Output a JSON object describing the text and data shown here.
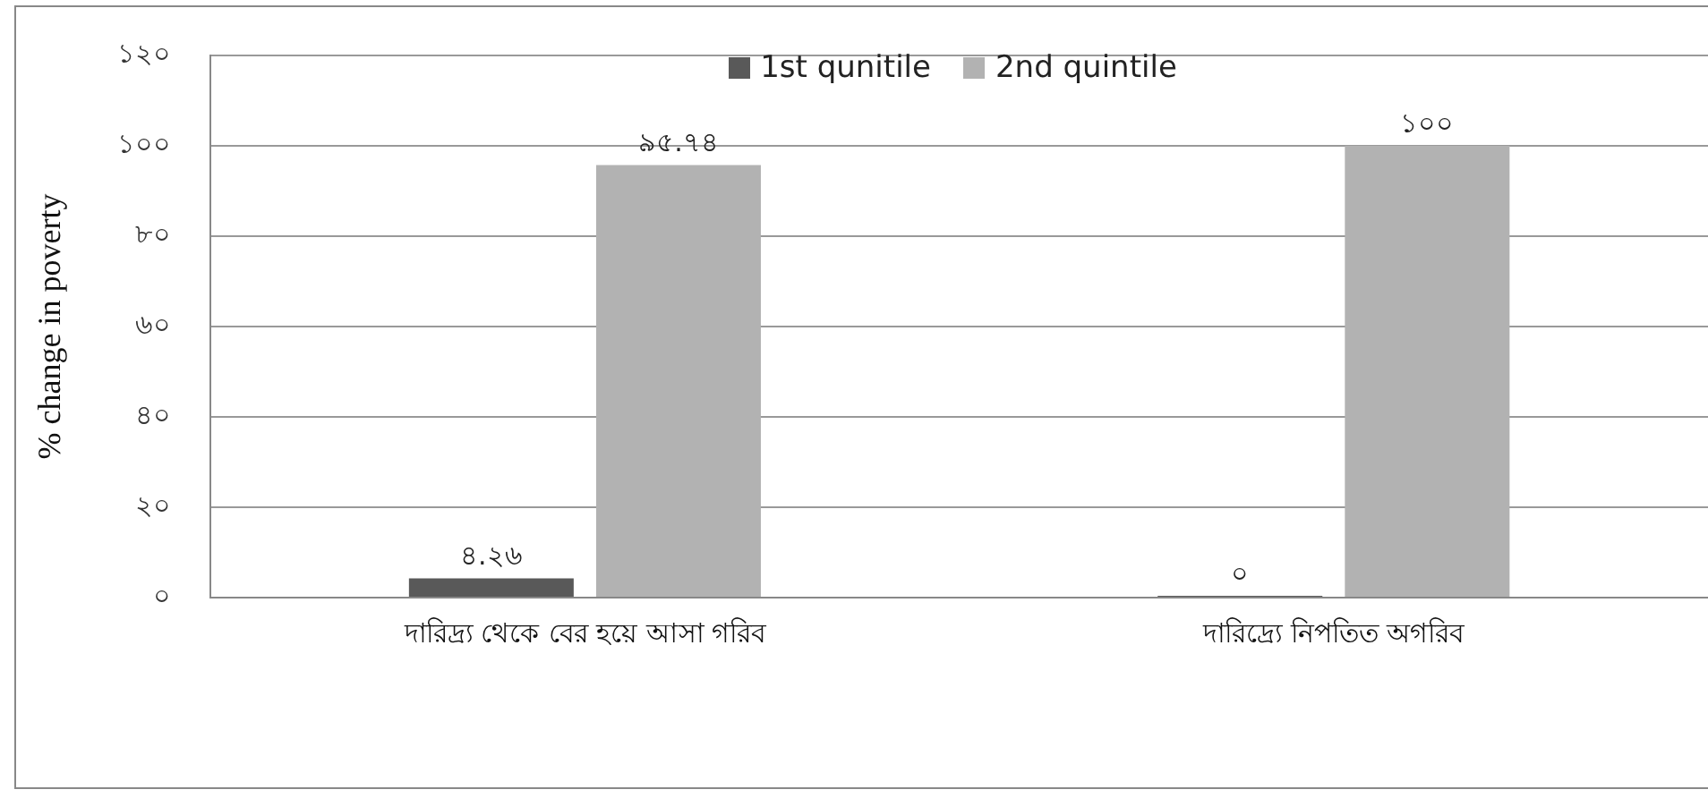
{
  "chart_data": {
    "type": "bar",
    "ylabel": "% change in poverty",
    "categories": [
      "দারিদ্র্য থেকে বের হয়ে আসা গরিব",
      "দারিদ্র্যে নিপতিত অগরিব"
    ],
    "series": [
      {
        "name": "1st qunitile",
        "color": "#595959",
        "values": [
          4.26,
          0
        ],
        "value_labels": [
          "৪.২৬",
          "০"
        ]
      },
      {
        "name": "2nd quintile",
        "color": "#b2b2b2",
        "values": [
          95.74,
          100
        ],
        "value_labels": [
          "৯৫.৭৪",
          "১০০"
        ]
      }
    ],
    "ylim": [
      0,
      120
    ],
    "yticks": [
      {
        "value": 0,
        "label": "০"
      },
      {
        "value": 20,
        "label": "২০"
      },
      {
        "value": 40,
        "label": "৪০"
      },
      {
        "value": 60,
        "label": "৬০"
      },
      {
        "value": 80,
        "label": "৮০"
      },
      {
        "value": 100,
        "label": "১০০"
      },
      {
        "value": 120,
        "label": "১২০"
      }
    ],
    "grid": "y",
    "legend": "top"
  }
}
